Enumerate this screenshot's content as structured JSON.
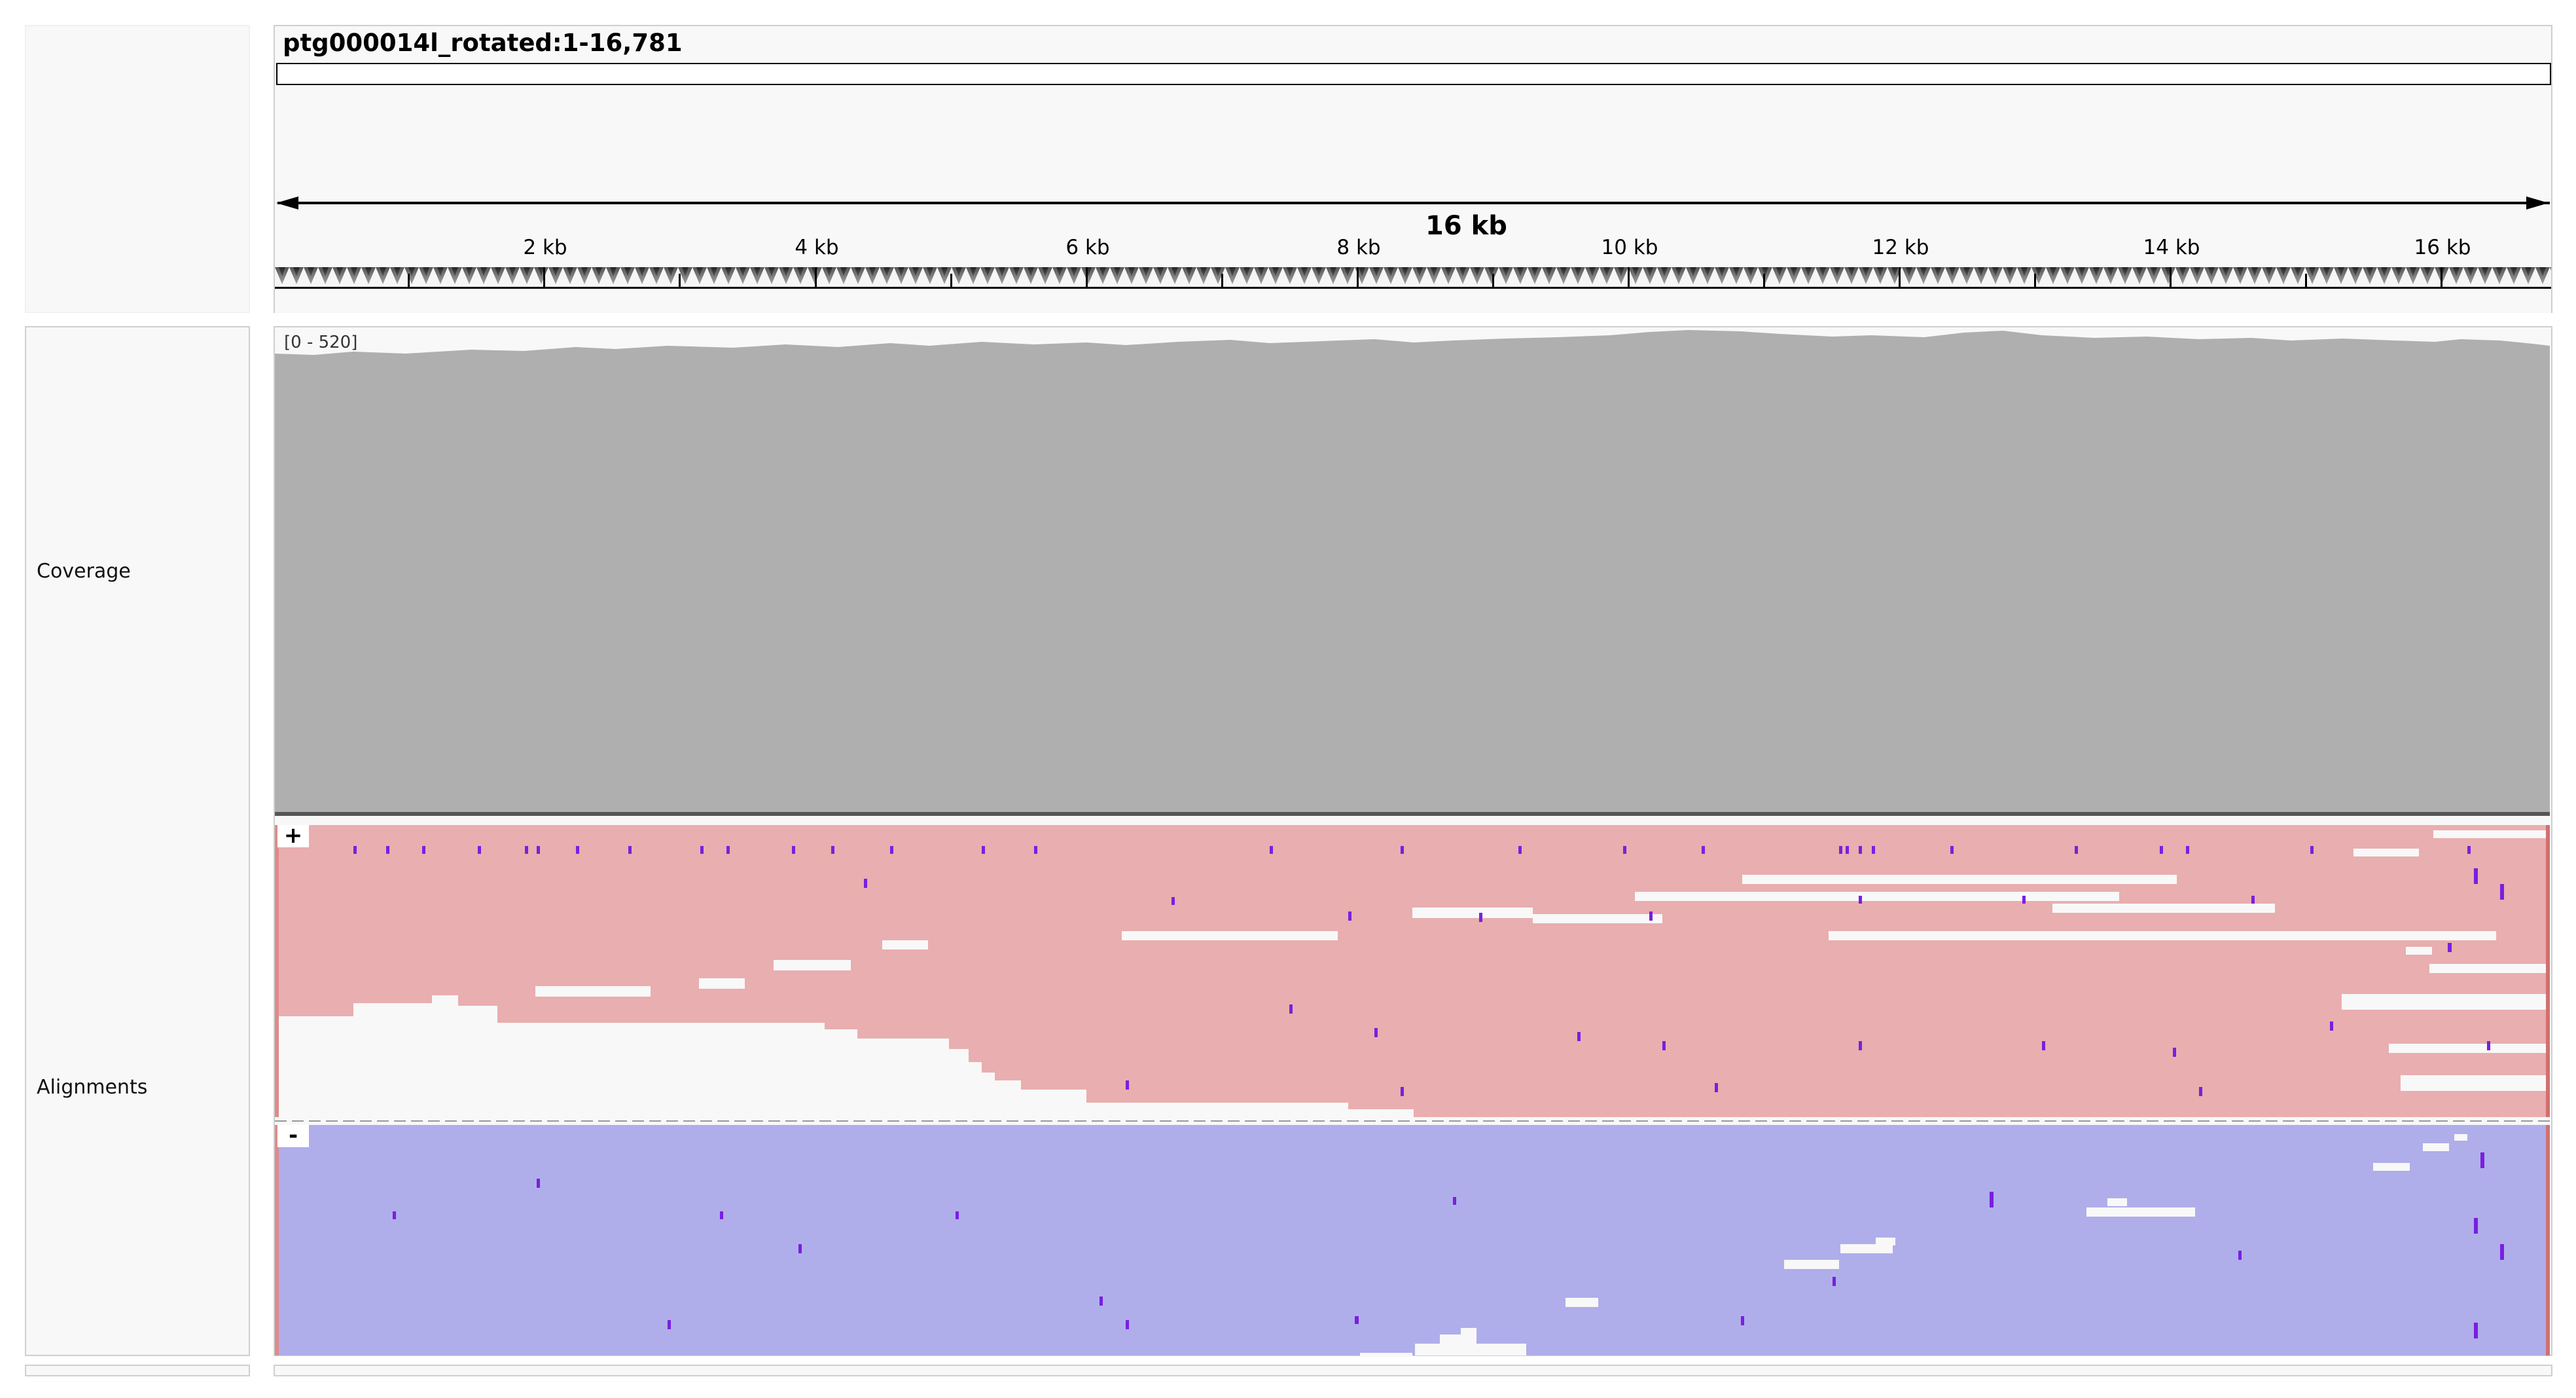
{
  "header": {
    "locus": "ptg000014l_rotated:1-16,781",
    "span_label": "16 kb",
    "ticks": [
      "2 kb",
      "4 kb",
      "6 kb",
      "8 kb",
      "10 kb",
      "12 kb",
      "14 kb",
      "16 kb"
    ]
  },
  "tracks": {
    "coverage_label": "Coverage",
    "alignments_label": "Alignments",
    "coverage_range": "[0 - 520]",
    "plus_strand": "+",
    "minus_strand": "-"
  },
  "colors": {
    "coverage": "#afafaf",
    "forward_reads": "#e9aeaf",
    "reverse_reads": "#afaeea",
    "mismatch": "#7a1fe0",
    "panel_border": "#cfcfcf"
  }
}
